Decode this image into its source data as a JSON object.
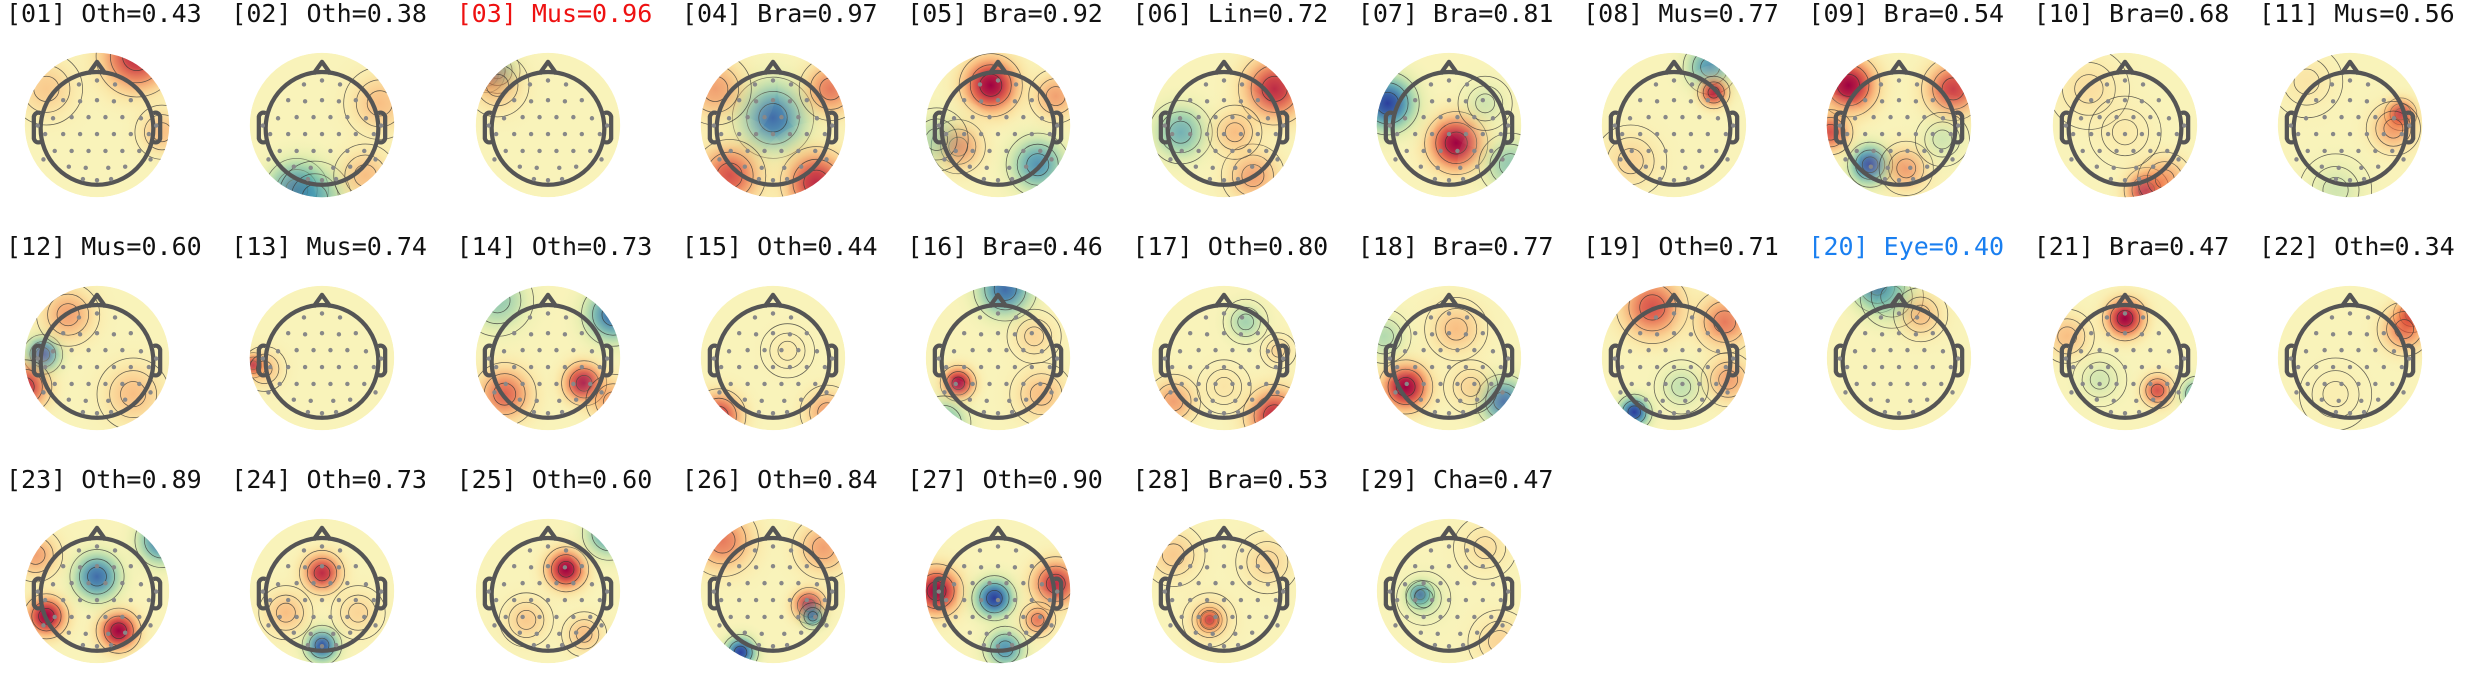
{
  "figure": {
    "label_colors": {
      "default": "#111111",
      "highlight_muscle": "#ee1111",
      "highlight_eye": "#1a7ff0"
    },
    "colormap": [
      "#2c3f9d",
      "#2f8ab5",
      "#6cc1a4",
      "#cde7a0",
      "#f9f6bf",
      "#fdd083",
      "#f88b4d",
      "#d8352e",
      "#9e0142"
    ],
    "components": [
      {
        "idx": "[01]",
        "cls": "Oth",
        "score": "0.43",
        "color": "default",
        "blobs": [
          [
            0.55,
            -0.95,
            0.45,
            0.9
          ],
          [
            -0.7,
            -0.5,
            0.4,
            0.45
          ],
          [
            0.9,
            0.1,
            0.3,
            0.5
          ]
        ]
      },
      {
        "idx": "[02]",
        "cls": "Oth",
        "score": "0.38",
        "color": "default",
        "blobs": [
          [
            -0.35,
            0.9,
            0.35,
            -1.0
          ],
          [
            -0.1,
            1.0,
            0.4,
            -0.7
          ],
          [
            0.8,
            -0.3,
            0.4,
            0.5
          ],
          [
            0.6,
            0.7,
            0.35,
            0.5
          ]
        ]
      },
      {
        "idx": "[03]",
        "cls": "Mus",
        "score": "0.96",
        "color": "highlight_muscle",
        "blobs": [
          [
            -0.85,
            -0.7,
            0.2,
            1.0
          ],
          [
            -0.7,
            -0.75,
            0.25,
            -0.7
          ],
          [
            -0.7,
            -0.55,
            0.35,
            0.5
          ]
        ]
      },
      {
        "idx": "[04]",
        "cls": "Bra",
        "score": "0.97",
        "color": "default",
        "blobs": [
          [
            0.0,
            -0.1,
            0.45,
            -0.9
          ],
          [
            0.6,
            0.8,
            0.4,
            0.9
          ],
          [
            -0.6,
            0.7,
            0.4,
            0.8
          ],
          [
            -0.8,
            -0.5,
            0.4,
            0.6
          ],
          [
            0.8,
            -0.5,
            0.35,
            0.7
          ]
        ]
      },
      {
        "idx": "[05]",
        "cls": "Bra",
        "score": "0.92",
        "color": "default",
        "blobs": [
          [
            -0.1,
            -0.55,
            0.35,
            1.0
          ],
          [
            0.55,
            0.55,
            0.35,
            -0.8
          ],
          [
            -0.55,
            0.3,
            0.3,
            0.7
          ],
          [
            -0.85,
            0.2,
            0.35,
            -0.5
          ],
          [
            0.8,
            -0.4,
            0.3,
            0.6
          ]
        ]
      },
      {
        "idx": "[06]",
        "cls": "Lin",
        "score": "0.72",
        "color": "default",
        "blobs": [
          [
            -0.6,
            0.1,
            0.35,
            -0.7
          ],
          [
            0.7,
            -0.5,
            0.4,
            0.9
          ],
          [
            0.4,
            0.7,
            0.35,
            0.6
          ],
          [
            0.15,
            0.1,
            0.3,
            0.5
          ]
        ]
      },
      {
        "idx": "[07]",
        "cls": "Bra",
        "score": "0.81",
        "color": "default",
        "blobs": [
          [
            0.1,
            0.25,
            0.35,
            1.0
          ],
          [
            -0.85,
            -0.3,
            0.35,
            -1.0
          ],
          [
            0.85,
            0.55,
            0.35,
            -0.6
          ],
          [
            0.5,
            -0.3,
            0.3,
            -0.4
          ]
        ]
      },
      {
        "idx": "[08]",
        "cls": "Mus",
        "score": "0.77",
        "color": "default",
        "blobs": [
          [
            0.5,
            -0.8,
            0.3,
            -0.8
          ],
          [
            0.55,
            -0.45,
            0.18,
            0.9
          ],
          [
            -0.6,
            0.5,
            0.4,
            0.4
          ]
        ]
      },
      {
        "idx": "[09]",
        "cls": "Bra",
        "score": "0.54",
        "color": "default",
        "blobs": [
          [
            -0.4,
            0.55,
            0.25,
            -1.0
          ],
          [
            -0.7,
            -0.55,
            0.35,
            1.0
          ],
          [
            0.75,
            -0.5,
            0.35,
            0.85
          ],
          [
            0.1,
            0.6,
            0.3,
            0.6
          ],
          [
            -0.95,
            0.1,
            0.25,
            0.8
          ],
          [
            0.6,
            0.2,
            0.3,
            -0.4
          ]
        ]
      },
      {
        "idx": "[10]",
        "cls": "Bra",
        "score": "0.68",
        "color": "default",
        "blobs": [
          [
            0.3,
            0.9,
            0.25,
            1.0
          ],
          [
            0.55,
            0.75,
            0.3,
            0.6
          ],
          [
            -0.5,
            -0.5,
            0.45,
            0.35
          ],
          [
            0.0,
            0.1,
            0.4,
            0.25
          ]
        ]
      },
      {
        "idx": "[11]",
        "cls": "Mus",
        "score": "0.56",
        "color": "default",
        "blobs": [
          [
            0.7,
            -0.15,
            0.18,
            1.0
          ],
          [
            0.6,
            0.05,
            0.3,
            0.6
          ],
          [
            -0.2,
            0.9,
            0.4,
            -0.4
          ],
          [
            -0.6,
            -0.6,
            0.4,
            0.3
          ]
        ]
      }
    ],
    "components_row2": [
      {
        "idx": "[12]",
        "cls": "Mus",
        "score": "0.60",
        "color": "default",
        "blobs": [
          [
            -0.75,
            -0.05,
            0.22,
            -1.0
          ],
          [
            -1.0,
            0.4,
            0.3,
            0.9
          ],
          [
            -0.4,
            -0.6,
            0.35,
            0.6
          ],
          [
            0.5,
            0.5,
            0.4,
            0.5
          ]
        ]
      },
      {
        "idx": "[13]",
        "cls": "Mus",
        "score": "0.74",
        "color": "default",
        "blobs": [
          [
            -0.95,
            0.1,
            0.14,
            1.0
          ],
          [
            -0.8,
            0.15,
            0.25,
            0.5
          ]
        ]
      },
      {
        "idx": "[14]",
        "cls": "Oth",
        "score": "0.73",
        "color": "default",
        "blobs": [
          [
            0.5,
            0.35,
            0.25,
            1.0
          ],
          [
            -0.7,
            -0.8,
            0.4,
            -0.6
          ],
          [
            0.9,
            -0.6,
            0.35,
            -0.9
          ],
          [
            -0.6,
            0.5,
            0.35,
            0.75
          ],
          [
            0.9,
            0.6,
            0.3,
            0.6
          ]
        ]
      },
      {
        "idx": "[15]",
        "cls": "Oth",
        "score": "0.44",
        "color": "default",
        "blobs": [
          [
            -0.75,
            0.8,
            0.3,
            0.85
          ],
          [
            0.75,
            0.75,
            0.3,
            0.6
          ],
          [
            0.2,
            -0.1,
            0.3,
            0.25
          ]
        ]
      },
      {
        "idx": "[16]",
        "cls": "Bra",
        "score": "0.46",
        "color": "default",
        "blobs": [
          [
            -0.55,
            0.35,
            0.2,
            1.0
          ],
          [
            0.1,
            -0.95,
            0.35,
            -0.9
          ],
          [
            -0.75,
            0.9,
            0.3,
            -0.7
          ],
          [
            0.6,
            0.5,
            0.35,
            0.5
          ],
          [
            0.5,
            -0.3,
            0.3,
            0.4
          ]
        ]
      },
      {
        "idx": "[17]",
        "cls": "Oth",
        "score": "0.80",
        "color": "default",
        "blobs": [
          [
            0.3,
            -0.5,
            0.25,
            -0.55
          ],
          [
            0.7,
            0.8,
            0.35,
            0.9
          ],
          [
            -0.7,
            0.6,
            0.3,
            0.6
          ],
          [
            0.0,
            0.4,
            0.3,
            0.3
          ],
          [
            0.75,
            -0.1,
            0.2,
            0.4
          ]
        ]
      },
      {
        "idx": "[18]",
        "cls": "Bra",
        "score": "0.77",
        "color": "default",
        "blobs": [
          [
            -0.6,
            0.4,
            0.3,
            1.0
          ],
          [
            0.75,
            0.6,
            0.3,
            -0.9
          ],
          [
            -0.9,
            -0.3,
            0.3,
            -0.5
          ],
          [
            0.1,
            -0.4,
            0.35,
            0.5
          ],
          [
            0.3,
            0.4,
            0.3,
            0.4
          ]
        ]
      },
      {
        "idx": "[19]",
        "cls": "Oth",
        "score": "0.71",
        "color": "default",
        "blobs": [
          [
            -0.55,
            0.75,
            0.2,
            -1.0
          ],
          [
            -0.3,
            -0.7,
            0.4,
            0.8
          ],
          [
            0.7,
            -0.5,
            0.35,
            0.7
          ],
          [
            0.75,
            0.3,
            0.3,
            0.6
          ],
          [
            0.1,
            0.4,
            0.3,
            -0.45
          ]
        ]
      },
      {
        "idx": "[20]",
        "cls": "Eye",
        "score": "0.40",
        "color": "highlight_eye",
        "blobs": [
          [
            -0.3,
            -1.0,
            0.3,
            -1.0
          ],
          [
            -0.1,
            -0.85,
            0.35,
            -0.6
          ],
          [
            0.3,
            -0.6,
            0.3,
            0.5
          ]
        ]
      },
      {
        "idx": "[21]",
        "cls": "Bra",
        "score": "0.47",
        "color": "default",
        "blobs": [
          [
            0.0,
            -0.55,
            0.25,
            1.0
          ],
          [
            0.45,
            0.45,
            0.2,
            0.8
          ],
          [
            -0.35,
            0.3,
            0.3,
            -0.4
          ],
          [
            1.0,
            0.5,
            0.2,
            -0.8
          ],
          [
            -0.8,
            -0.3,
            0.3,
            0.5
          ]
        ]
      },
      {
        "idx": "[22]",
        "cls": "Oth",
        "score": "0.34",
        "color": "default",
        "blobs": [
          [
            0.85,
            -0.6,
            0.2,
            1.0
          ],
          [
            0.75,
            -0.4,
            0.3,
            0.7
          ],
          [
            -0.2,
            0.5,
            0.4,
            0.2
          ]
        ]
      }
    ],
    "components_row3": [
      {
        "idx": "[23]",
        "cls": "Oth",
        "score": "0.89",
        "color": "default",
        "blobs": [
          [
            -0.7,
            0.35,
            0.25,
            1.0
          ],
          [
            0.3,
            0.55,
            0.25,
            1.0
          ],
          [
            0.0,
            -0.2,
            0.3,
            -0.9
          ],
          [
            0.9,
            -0.7,
            0.3,
            -0.9
          ],
          [
            -0.85,
            -0.5,
            0.3,
            0.6
          ]
        ]
      },
      {
        "idx": "[24]",
        "cls": "Oth",
        "score": "0.73",
        "color": "default",
        "blobs": [
          [
            0.0,
            -0.25,
            0.25,
            0.9
          ],
          [
            0.0,
            0.75,
            0.22,
            -0.95
          ],
          [
            -0.5,
            0.3,
            0.3,
            0.5
          ],
          [
            0.5,
            0.3,
            0.3,
            0.4
          ]
        ]
      },
      {
        "idx": "[25]",
        "cls": "Oth",
        "score": "0.60",
        "color": "default",
        "blobs": [
          [
            0.25,
            -0.3,
            0.25,
            1.0
          ],
          [
            0.85,
            -0.8,
            0.3,
            -0.8
          ],
          [
            -0.3,
            0.4,
            0.3,
            0.45
          ],
          [
            0.5,
            0.6,
            0.25,
            0.5
          ]
        ]
      },
      {
        "idx": "[26]",
        "cls": "Oth",
        "score": "0.84",
        "color": "default",
        "blobs": [
          [
            -0.45,
            0.85,
            0.2,
            -1.0
          ],
          [
            0.5,
            0.2,
            0.2,
            1.0
          ],
          [
            0.55,
            0.35,
            0.15,
            -0.8
          ],
          [
            -0.7,
            -0.7,
            0.4,
            0.7
          ],
          [
            0.7,
            -0.6,
            0.35,
            0.6
          ]
        ]
      },
      {
        "idx": "[27]",
        "cls": "Oth",
        "score": "0.90",
        "color": "default",
        "blobs": [
          [
            -0.85,
            0.0,
            0.3,
            1.0
          ],
          [
            -0.05,
            0.1,
            0.25,
            -1.0
          ],
          [
            0.8,
            -0.1,
            0.3,
            0.9
          ],
          [
            0.1,
            0.8,
            0.25,
            -0.8
          ],
          [
            0.55,
            0.4,
            0.2,
            0.7
          ]
        ]
      },
      {
        "idx": "[28]",
        "cls": "Bra",
        "score": "0.53",
        "color": "default",
        "blobs": [
          [
            -0.2,
            0.4,
            0.14,
            1.0
          ],
          [
            -0.2,
            0.4,
            0.3,
            0.5
          ],
          [
            -0.7,
            -0.5,
            0.35,
            0.45
          ],
          [
            0.6,
            -0.4,
            0.35,
            0.4
          ]
        ]
      },
      {
        "idx": "[29]",
        "cls": "Cha",
        "score": "0.47",
        "color": "default",
        "blobs": [
          [
            -0.4,
            0.05,
            0.16,
            -1.0
          ],
          [
            -0.35,
            0.1,
            0.3,
            -0.45
          ],
          [
            0.7,
            0.7,
            0.35,
            0.4
          ],
          [
            0.5,
            -0.6,
            0.35,
            0.35
          ]
        ]
      }
    ]
  }
}
